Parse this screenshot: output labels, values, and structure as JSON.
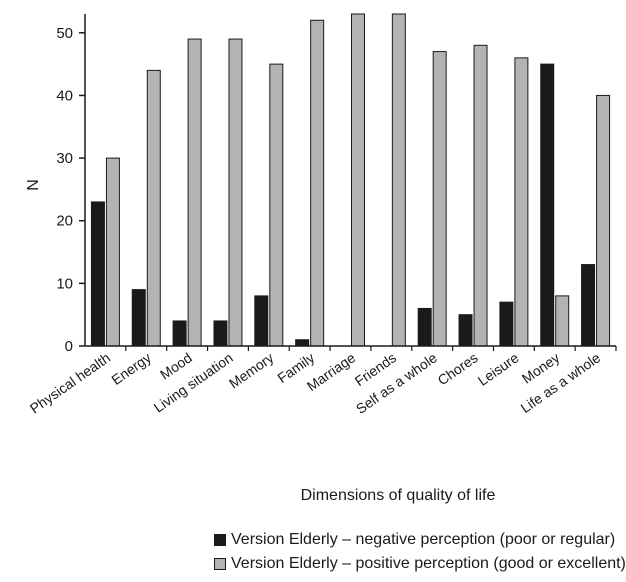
{
  "chart_data": {
    "type": "bar",
    "categories": [
      "Physical health",
      "Energy",
      "Mood",
      "Living situation",
      "Memory",
      "Family",
      "Marriage",
      "Friends",
      "Self as a whole",
      "Chores",
      "Leisure",
      "Money",
      "Life as a whole"
    ],
    "series": [
      {
        "name": "Version Elderly – negative perception (poor or regular)",
        "color": "#1a1a1a",
        "values": [
          23,
          9,
          4,
          4,
          8,
          1,
          0,
          0,
          6,
          5,
          7,
          45,
          13
        ]
      },
      {
        "name": "Version Elderly – positive perception (good or excellent)",
        "color": "#b3b3b3",
        "values": [
          30,
          44,
          49,
          49,
          45,
          52,
          53,
          53,
          47,
          48,
          46,
          8,
          40
        ]
      }
    ],
    "yticks": [
      0,
      10,
      20,
      30,
      40,
      50
    ],
    "ylim": [
      0,
      53
    ],
    "xlabel": "Dimensions of quality of life",
    "ylabel": "N",
    "legend_position": "bottom"
  }
}
